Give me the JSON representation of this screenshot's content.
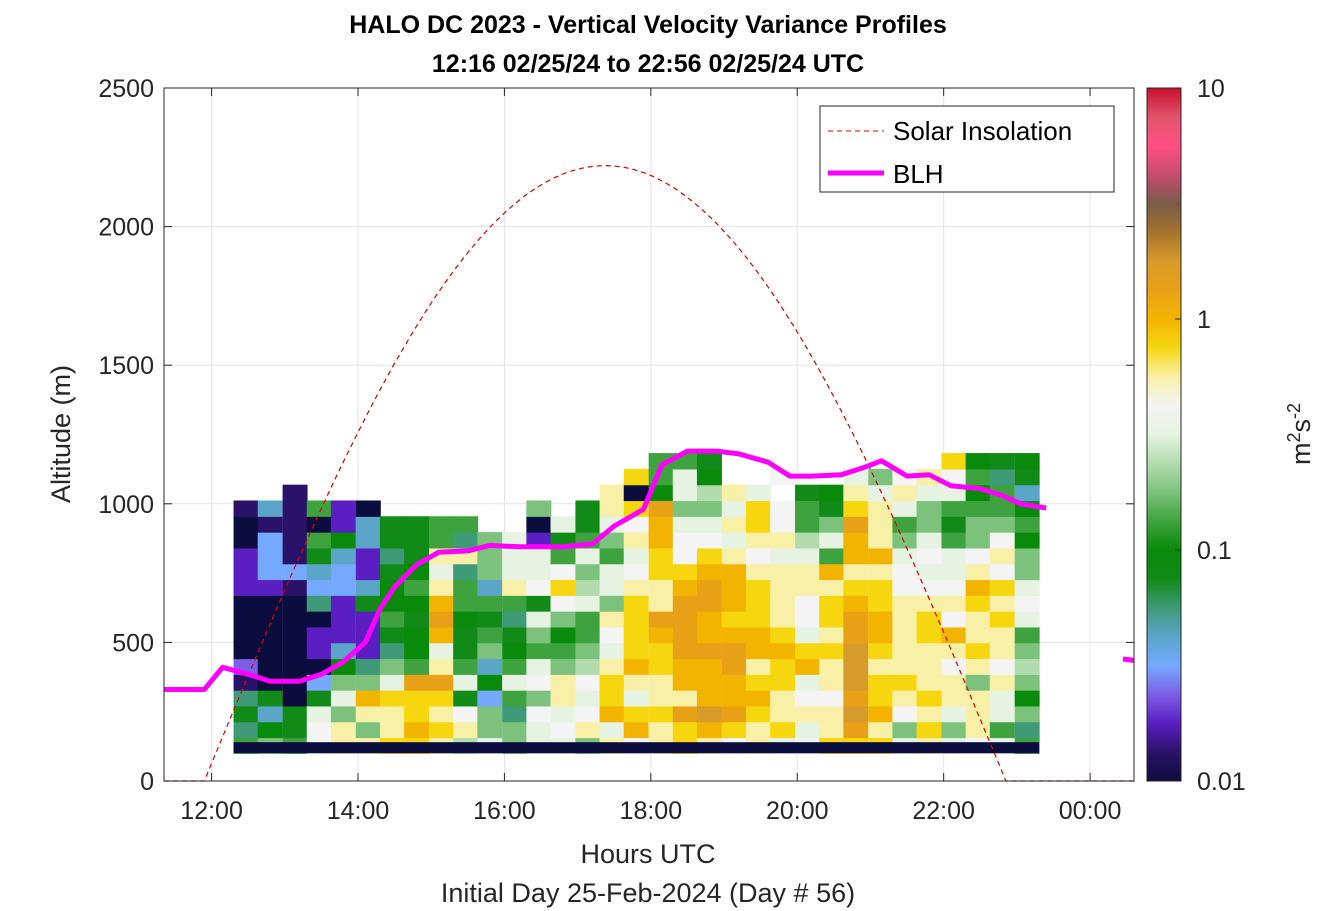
{
  "chart_data": {
    "type": "heatmap",
    "title": "HALO DC 2023 - Vertical Velocity Variance Profiles",
    "subtitle": "12:16 02/25/24 to 22:56 02/25/24  UTC",
    "xlabel": "Hours UTC",
    "xlabel2": "Initial Day 25-Feb-2024 (Day # 56)",
    "ylabel": "Altitude (m)",
    "xlim": [
      11.35,
      24.6
    ],
    "ylim": [
      0,
      2500
    ],
    "x_ticks": [
      12,
      14,
      16,
      18,
      20,
      22,
      24
    ],
    "x_tick_labels": [
      "12:00",
      "14:00",
      "16:00",
      "18:00",
      "20:00",
      "22:00",
      "00:00"
    ],
    "y_ticks": [
      0,
      500,
      1000,
      1500,
      2000,
      2500
    ],
    "y_tick_labels": [
      "0",
      "500",
      "1000",
      "1500",
      "2000",
      "2500"
    ],
    "grid": true,
    "legend_position": "top-right",
    "legend": [
      {
        "name": "Solar Insolation",
        "style": "dashed",
        "color": "#e00000"
      },
      {
        "name": "BLH",
        "style": "solid",
        "color": "#ff00ff"
      }
    ],
    "colorbar": {
      "label": "m²s⁻²",
      "label_base": "m",
      "label_exp1": "2",
      "label_mid": "s",
      "label_exp2": "-2",
      "scale": "log",
      "range": [
        0.01,
        10
      ],
      "tick_values": [
        0.01,
        0.1,
        1,
        10
      ],
      "tick_labels": [
        "0.01",
        "0.1",
        "1",
        "10"
      ],
      "colors": [
        "#0c0d3f",
        "#2a1268",
        "#5a1ec2",
        "#7b5fe6",
        "#74a9ff",
        "#5aa5c8",
        "#3f9a78",
        "#118a18",
        "#0a8a0a",
        "#3ea33e",
        "#7cc27c",
        "#b2dcae",
        "#e6f2e2",
        "#f4f4f4",
        "#f9f0a8",
        "#f5d60f",
        "#f3b400",
        "#e8a117",
        "#d79b2b",
        "#a6732e",
        "#7a5b49",
        "#c44c6f",
        "#ff4f86",
        "#e0556b",
        "#c8102e"
      ]
    },
    "heatmap": {
      "x_start": 12.3,
      "dx": 0.333,
      "y_start": 100,
      "dy": 57,
      "base_band": {
        "y_from": 100,
        "y_to": 140,
        "value": 0.01
      },
      "columns": [
        {
          "x": 12.3,
          "values": [
            0.15,
            0.05,
            0.07,
            0.06,
            0.015,
            0.025,
            0.01,
            0.01,
            0.01,
            0.01,
            0.02,
            0.02,
            0.02,
            0.01,
            0.01,
            0.015,
            null,
            null,
            null
          ]
        },
        {
          "x": 12.63,
          "values": [
            0.2,
            0.1,
            0.04,
            0.07,
            0.01,
            0.01,
            0.01,
            0.01,
            0.01,
            0.01,
            0.02,
            0.03,
            0.03,
            0.03,
            0.015,
            0.04,
            null,
            null,
            null
          ]
        },
        {
          "x": 12.97,
          "values": [
            0.12,
            0.07,
            0.08,
            0.01,
            0.01,
            0.01,
            0.01,
            0.01,
            0.01,
            0.01,
            0.012,
            0.03,
            0.012,
            0.012,
            0.012,
            0.012,
            0.015,
            null,
            null
          ]
        },
        {
          "x": 13.3,
          "values": [
            0.4,
            0.4,
            0.3,
            0.08,
            0.03,
            0.01,
            0.02,
            0.02,
            0.01,
            0.06,
            0.03,
            0.04,
            0.08,
            0.12,
            0.01,
            0.15,
            null,
            null,
            null
          ]
        },
        {
          "x": 13.63,
          "values": [
            0.6,
            0.6,
            0.2,
            0.3,
            0.2,
            0.1,
            0.04,
            0.02,
            0.02,
            0.02,
            0.03,
            0.03,
            0.04,
            0.1,
            0.02,
            0.02,
            null,
            null,
            null
          ]
        },
        {
          "x": 13.97,
          "values": [
            0.5,
            0.2,
            0.5,
            0.9,
            0.2,
            0.05,
            0.02,
            0.02,
            0.02,
            0.07,
            0.04,
            0.02,
            0.02,
            0.04,
            0.04,
            0.01,
            null,
            null,
            null
          ]
        },
        {
          "x": 14.3,
          "values": [
            0.7,
            0.5,
            0.6,
            0.7,
            0.3,
            0.2,
            0.06,
            0.08,
            0.15,
            0.09,
            0.1,
            0.07,
            0.05,
            0.08,
            0.08,
            null,
            null,
            null,
            null
          ]
        },
        {
          "x": 14.63,
          "values": [
            0.7,
            0.9,
            0.8,
            0.85,
            1.5,
            0.15,
            0.1,
            0.09,
            0.07,
            0.1,
            0.12,
            0.1,
            0.07,
            0.07,
            0.07,
            null,
            null,
            null,
            null
          ]
        },
        {
          "x": 14.97,
          "values": [
            0.6,
            0.7,
            0.5,
            0.7,
            1.2,
            0.6,
            0.3,
            0.9,
            1.5,
            0.9,
            0.5,
            0.3,
            0.6,
            0.12,
            0.15,
            null,
            null,
            null,
            null
          ]
        },
        {
          "x": 15.3,
          "values": [
            0.25,
            0.6,
            0.4,
            0.07,
            0.3,
            0.15,
            0.08,
            0.08,
            0.1,
            0.12,
            0.15,
            0.06,
            0.6,
            0.05,
            0.15,
            null,
            null,
            null,
            null
          ]
        },
        {
          "x": 15.63,
          "values": [
            0.3,
            0.2,
            0.2,
            0.03,
            0.1,
            0.04,
            0.2,
            0.12,
            0.08,
            0.15,
            0.04,
            0.2,
            0.2,
            0.2,
            null,
            null,
            null,
            null,
            null
          ]
        },
        {
          "x": 15.97,
          "values": [
            0.2,
            0.2,
            0.06,
            0.15,
            0.3,
            0.15,
            0.1,
            0.08,
            0.06,
            0.12,
            0.5,
            0.3,
            0.3,
            0.3,
            null,
            null,
            null,
            null,
            null
          ]
        },
        {
          "x": 16.3,
          "values": [
            0.3,
            0.3,
            0.4,
            0.2,
            0.4,
            0.3,
            0.15,
            0.2,
            0.3,
            0.07,
            0.4,
            0.3,
            0.3,
            0.02,
            0.01,
            0.2,
            null,
            null,
            null
          ]
        },
        {
          "x": 16.63,
          "values": [
            0.3,
            0.4,
            0.3,
            0.5,
            0.5,
            0.2,
            0.15,
            0.1,
            0.2,
            0.4,
            0.8,
            0.4,
            0.15,
            0.08,
            0.3,
            null,
            null,
            null,
            null
          ]
        },
        {
          "x": 16.97,
          "values": [
            0.2,
            0.5,
            0.4,
            0.3,
            0.4,
            0.25,
            0.2,
            0.15,
            0.12,
            0.3,
            0.25,
            0.2,
            0.3,
            0.12,
            0.08,
            0.08,
            null,
            null,
            null
          ]
        },
        {
          "x": 17.3,
          "values": [
            0.6,
            0.3,
            0.9,
            0.8,
            0.7,
            0.5,
            0.3,
            0.4,
            0.6,
            0.2,
            0.3,
            0.3,
            0.15,
            0.2,
            0.3,
            0.5,
            0.5,
            null,
            null
          ]
        },
        {
          "x": 17.63,
          "values": [
            0.4,
            0.9,
            0.8,
            0.3,
            0.6,
            0.9,
            0.7,
            0.8,
            0.7,
            0.8,
            0.5,
            0.4,
            0.3,
            0.6,
            0.4,
            0.7,
            0.01,
            0.8,
            null
          ]
        },
        {
          "x": 17.97,
          "values": [
            0.5,
            0.6,
            0.7,
            0.5,
            0.6,
            0.7,
            0.8,
            0.9,
            1.3,
            0.6,
            0.6,
            0.8,
            0.7,
            1.1,
            0.9,
            1.3,
            0.1,
            0.15,
            0.12
          ]
        },
        {
          "x": 18.3,
          "values": [
            0.7,
            0.8,
            1.5,
            0.6,
            0.9,
            1.1,
            1.5,
            1.3,
            1.3,
            1.2,
            0.9,
            0.7,
            0.4,
            0.4,
            0.3,
            0.2,
            0.3,
            0.3,
            0.15
          ]
        },
        {
          "x": 18.63,
          "values": [
            0.6,
            0.9,
            2.0,
            0.9,
            1.0,
            1.1,
            1.3,
            1.1,
            1.0,
            1.4,
            1.2,
            1.1,
            0.8,
            0.4,
            0.3,
            0.2,
            0.25,
            0.1,
            0.08
          ]
        },
        {
          "x": 18.97,
          "values": [
            0.4,
            0.8,
            1.5,
            0.9,
            1.1,
            1.4,
            1.4,
            1.0,
            0.8,
            1.0,
            0.9,
            1.1,
            0.6,
            0.3,
            0.5,
            0.3,
            0.5,
            null,
            null
          ]
        },
        {
          "x": 19.3,
          "values": [
            0.5,
            0.6,
            0.8,
            0.9,
            0.7,
            0.6,
            1.0,
            0.9,
            0.8,
            0.8,
            0.8,
            0.6,
            0.4,
            0.5,
            0.8,
            0.8,
            0.3,
            null,
            null
          ]
        },
        {
          "x": 19.63,
          "values": [
            0.3,
            0.8,
            0.6,
            0.5,
            0.7,
            0.7,
            0.9,
            0.7,
            0.6,
            0.5,
            0.6,
            0.5,
            0.3,
            0.5,
            0.4,
            0.4,
            null,
            0.4,
            null
          ]
        },
        {
          "x": 19.97,
          "values": [
            0.4,
            0.3,
            0.5,
            0.4,
            0.3,
            0.9,
            0.8,
            0.3,
            0.4,
            0.4,
            0.5,
            0.6,
            0.3,
            0.25,
            0.12,
            0.15,
            0.08,
            null,
            null
          ]
        },
        {
          "x": 20.3,
          "values": [
            0.7,
            0.5,
            0.6,
            0.4,
            0.6,
            0.5,
            0.7,
            0.6,
            0.8,
            0.7,
            0.6,
            0.9,
            0.15,
            0.3,
            0.2,
            0.08,
            0.1,
            null,
            null
          ]
        },
        {
          "x": 20.63,
          "values": [
            0.8,
            1.2,
            2.0,
            1.5,
            1.8,
            2.0,
            2.0,
            1.5,
            1.2,
            1.0,
            0.8,
            0.6,
            0.9,
            0.9,
            1.5,
            0.8,
            0.5,
            0.3,
            null
          ]
        },
        {
          "x": 20.97,
          "values": [
            0.7,
            0.6,
            0.9,
            0.8,
            0.8,
            0.6,
            0.8,
            1.0,
            0.9,
            0.8,
            0.7,
            0.5,
            1.0,
            0.6,
            0.6,
            0.5,
            0.3,
            0.2,
            null
          ]
        },
        {
          "x": 21.3,
          "values": [
            0.3,
            0.2,
            0.4,
            0.5,
            0.7,
            0.5,
            0.6,
            0.5,
            0.5,
            0.5,
            0.4,
            0.4,
            0.3,
            0.2,
            0.15,
            0.3,
            0.6,
            0.4,
            null
          ]
        },
        {
          "x": 21.63,
          "values": [
            0.5,
            0.7,
            0.6,
            0.7,
            0.6,
            0.5,
            0.6,
            0.7,
            0.7,
            0.6,
            0.4,
            0.3,
            0.4,
            0.3,
            0.2,
            0.2,
            0.3,
            0.6,
            null
          ]
        },
        {
          "x": 21.97,
          "values": [
            0.3,
            0.2,
            0.3,
            0.5,
            0.6,
            0.4,
            0.5,
            0.9,
            0.4,
            0.5,
            0.4,
            0.3,
            0.3,
            0.15,
            0.08,
            0.12,
            0.3,
            0.4,
            0.8
          ]
        },
        {
          "x": 22.3,
          "values": [
            0.4,
            0.5,
            0.6,
            0.5,
            0.2,
            0.6,
            0.8,
            0.6,
            0.6,
            0.8,
            0.9,
            0.6,
            0.4,
            0.2,
            0.2,
            0.15,
            0.1,
            0.15,
            0.1
          ]
        },
        {
          "x": 22.63,
          "values": [
            0.3,
            0.15,
            0.3,
            0.3,
            0.5,
            0.4,
            0.6,
            0.6,
            0.8,
            0.6,
            0.8,
            0.4,
            0.5,
            0.4,
            0.2,
            0.15,
            0.12,
            0.06,
            0.07
          ]
        },
        {
          "x": 22.97,
          "values": [
            0.15,
            0.06,
            0.2,
            0.1,
            0.2,
            0.25,
            0.2,
            0.15,
            0.3,
            0.4,
            0.3,
            0.2,
            0.2,
            0.1,
            0.15,
            0.1,
            0.04,
            0.08,
            0.1
          ]
        }
      ]
    },
    "solar_insolation": {
      "t_start": 11.9,
      "t_end": 22.85,
      "peak_time": 17.38,
      "peak_altitude": 2220,
      "baseline_altitude": 0
    },
    "blh": [
      {
        "x": 11.35,
        "y": 330
      },
      {
        "x": 11.9,
        "y": 330
      },
      {
        "x": 12.15,
        "y": 410
      },
      {
        "x": 12.5,
        "y": 385
      },
      {
        "x": 12.8,
        "y": 360
      },
      {
        "x": 13.2,
        "y": 360
      },
      {
        "x": 13.5,
        "y": 385
      },
      {
        "x": 13.8,
        "y": 430
      },
      {
        "x": 14.1,
        "y": 500
      },
      {
        "x": 14.3,
        "y": 620
      },
      {
        "x": 14.5,
        "y": 700
      },
      {
        "x": 14.8,
        "y": 780
      },
      {
        "x": 15.1,
        "y": 825
      },
      {
        "x": 15.5,
        "y": 830
      },
      {
        "x": 15.8,
        "y": 850
      },
      {
        "x": 16.2,
        "y": 845
      },
      {
        "x": 16.8,
        "y": 845
      },
      {
        "x": 17.2,
        "y": 855
      },
      {
        "x": 17.5,
        "y": 920
      },
      {
        "x": 17.9,
        "y": 980
      },
      {
        "x": 18.15,
        "y": 1140
      },
      {
        "x": 18.5,
        "y": 1190
      },
      {
        "x": 18.9,
        "y": 1190
      },
      {
        "x": 19.2,
        "y": 1180
      },
      {
        "x": 19.6,
        "y": 1150
      },
      {
        "x": 19.9,
        "y": 1100
      },
      {
        "x": 20.2,
        "y": 1100
      },
      {
        "x": 20.6,
        "y": 1105
      },
      {
        "x": 20.9,
        "y": 1130
      },
      {
        "x": 21.15,
        "y": 1155
      },
      {
        "x": 21.5,
        "y": 1100
      },
      {
        "x": 21.8,
        "y": 1105
      },
      {
        "x": 22.1,
        "y": 1065
      },
      {
        "x": 22.5,
        "y": 1055
      },
      {
        "x": 22.8,
        "y": 1030
      },
      {
        "x": 23.05,
        "y": 1000
      },
      {
        "x": 23.4,
        "y": 985
      }
    ],
    "blh_segment2": [
      {
        "x": 24.45,
        "y": 440
      },
      {
        "x": 24.6,
        "y": 435
      }
    ]
  }
}
